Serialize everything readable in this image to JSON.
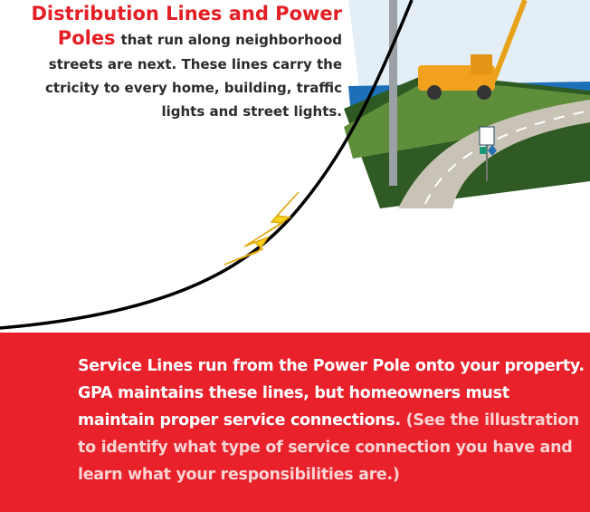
{
  "heading": {
    "title_lines": [
      "Distribution Lines and Power",
      "Poles"
    ],
    "body_lines": [
      "that run along neighborhood",
      "streets are next. These lines carry the",
      "ctricity to every home, building,  traffic",
      "lights and street lights."
    ]
  },
  "service_box": {
    "main_text": "Service Lines run from the Power Pole onto your property. GPA maintains these lines, but homeowners must maintain proper service connections.",
    "note_text": "(See the illustration to identify what type of service connection you have and learn what your responsibilities are.)"
  }
}
